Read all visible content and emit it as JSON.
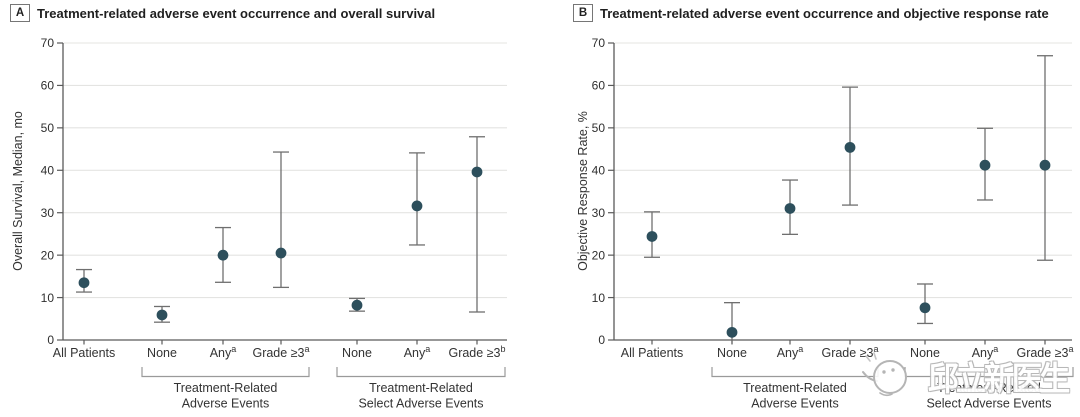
{
  "colors": {
    "point": "#2d4f5c",
    "error_bar": "#6f6f6f",
    "gridline": "#e4e4e2",
    "axis": "#5a5a5a",
    "tick_text": "#2f2f2f",
    "label_text": "#333333",
    "bracket": "#9a9a9a",
    "watermark_outline": "#b5b5b5"
  },
  "watermark": {
    "text": "邱立新医生",
    "face_icon": "smiley-face-doodle"
  },
  "chart_data": [
    {
      "type": "scatter",
      "panel": "A",
      "title": "Treatment-related adverse event occurrence and overall survival",
      "ylabel": "Overall Survival, Median, mo",
      "xlabel": "",
      "ylim": [
        0,
        70
      ],
      "yticks": [
        0,
        10,
        20,
        30,
        40,
        50,
        60,
        70
      ],
      "grid": "horizontal",
      "legend": "none",
      "categories": [
        {
          "label": "All Patients",
          "sup": ""
        },
        {
          "label": "None",
          "sup": ""
        },
        {
          "label": "Any",
          "sup": "a"
        },
        {
          "label": "Grade ≥3",
          "sup": "a"
        },
        {
          "label": "None",
          "sup": ""
        },
        {
          "label": "Any",
          "sup": "a"
        },
        {
          "label": "Grade ≥3",
          "sup": "b"
        }
      ],
      "points": [
        {
          "y": 13.5,
          "lo": 11.3,
          "hi": 16.6
        },
        {
          "y": 5.9,
          "lo": 4.2,
          "hi": 7.9
        },
        {
          "y": 20.0,
          "lo": 13.6,
          "hi": 26.5
        },
        {
          "y": 20.5,
          "lo": 12.4,
          "hi": 44.3
        },
        {
          "y": 8.2,
          "lo": 6.8,
          "hi": 9.8
        },
        {
          "y": 31.6,
          "lo": 22.4,
          "hi": 44.1
        },
        {
          "y": 39.6,
          "lo": 6.6,
          "hi": 47.9
        }
      ],
      "group_brackets": [
        {
          "line1": "Treatment-Related",
          "line2": "Adverse Events",
          "from_cat": 1,
          "to_cat": 3
        },
        {
          "line1": "Treatment-Related",
          "line2": "Select Adverse Events",
          "from_cat": 4,
          "to_cat": 6
        }
      ]
    },
    {
      "type": "scatter",
      "panel": "B",
      "title": "Treatment-related adverse event occurrence and objective response rate",
      "ylabel": "Objective Response Rate, %",
      "xlabel": "",
      "ylim": [
        0,
        70
      ],
      "yticks": [
        0,
        10,
        20,
        30,
        40,
        50,
        60,
        70
      ],
      "grid": "horizontal",
      "legend": "none",
      "categories": [
        {
          "label": "All Patients",
          "sup": ""
        },
        {
          "label": "None",
          "sup": ""
        },
        {
          "label": "Any",
          "sup": "a"
        },
        {
          "label": "Grade ≥3",
          "sup": "a"
        },
        {
          "label": "None",
          "sup": ""
        },
        {
          "label": "Any",
          "sup": "a"
        },
        {
          "label": "Grade ≥3",
          "sup": "a"
        }
      ],
      "points": [
        {
          "y": 24.4,
          "lo": 19.5,
          "hi": 30.2
        },
        {
          "y": 1.8,
          "lo": 0,
          "hi": 8.8,
          "lo_open": true
        },
        {
          "y": 31.0,
          "lo": 24.9,
          "hi": 37.7
        },
        {
          "y": 45.4,
          "lo": 31.8,
          "hi": 59.6
        },
        {
          "y": 7.6,
          "lo": 3.9,
          "hi": 13.2
        },
        {
          "y": 41.2,
          "lo": 33.0,
          "hi": 49.9
        },
        {
          "y": 41.2,
          "lo": 18.8,
          "hi": 67.0
        }
      ],
      "group_brackets": [
        {
          "line1": "Treatment-Related",
          "line2": "Adverse Events",
          "from_cat": 1,
          "to_cat": 3
        },
        {
          "line1": "Treatment-Related",
          "line2": "Select Adverse Events",
          "from_cat": 4,
          "to_cat": 6
        }
      ]
    }
  ]
}
